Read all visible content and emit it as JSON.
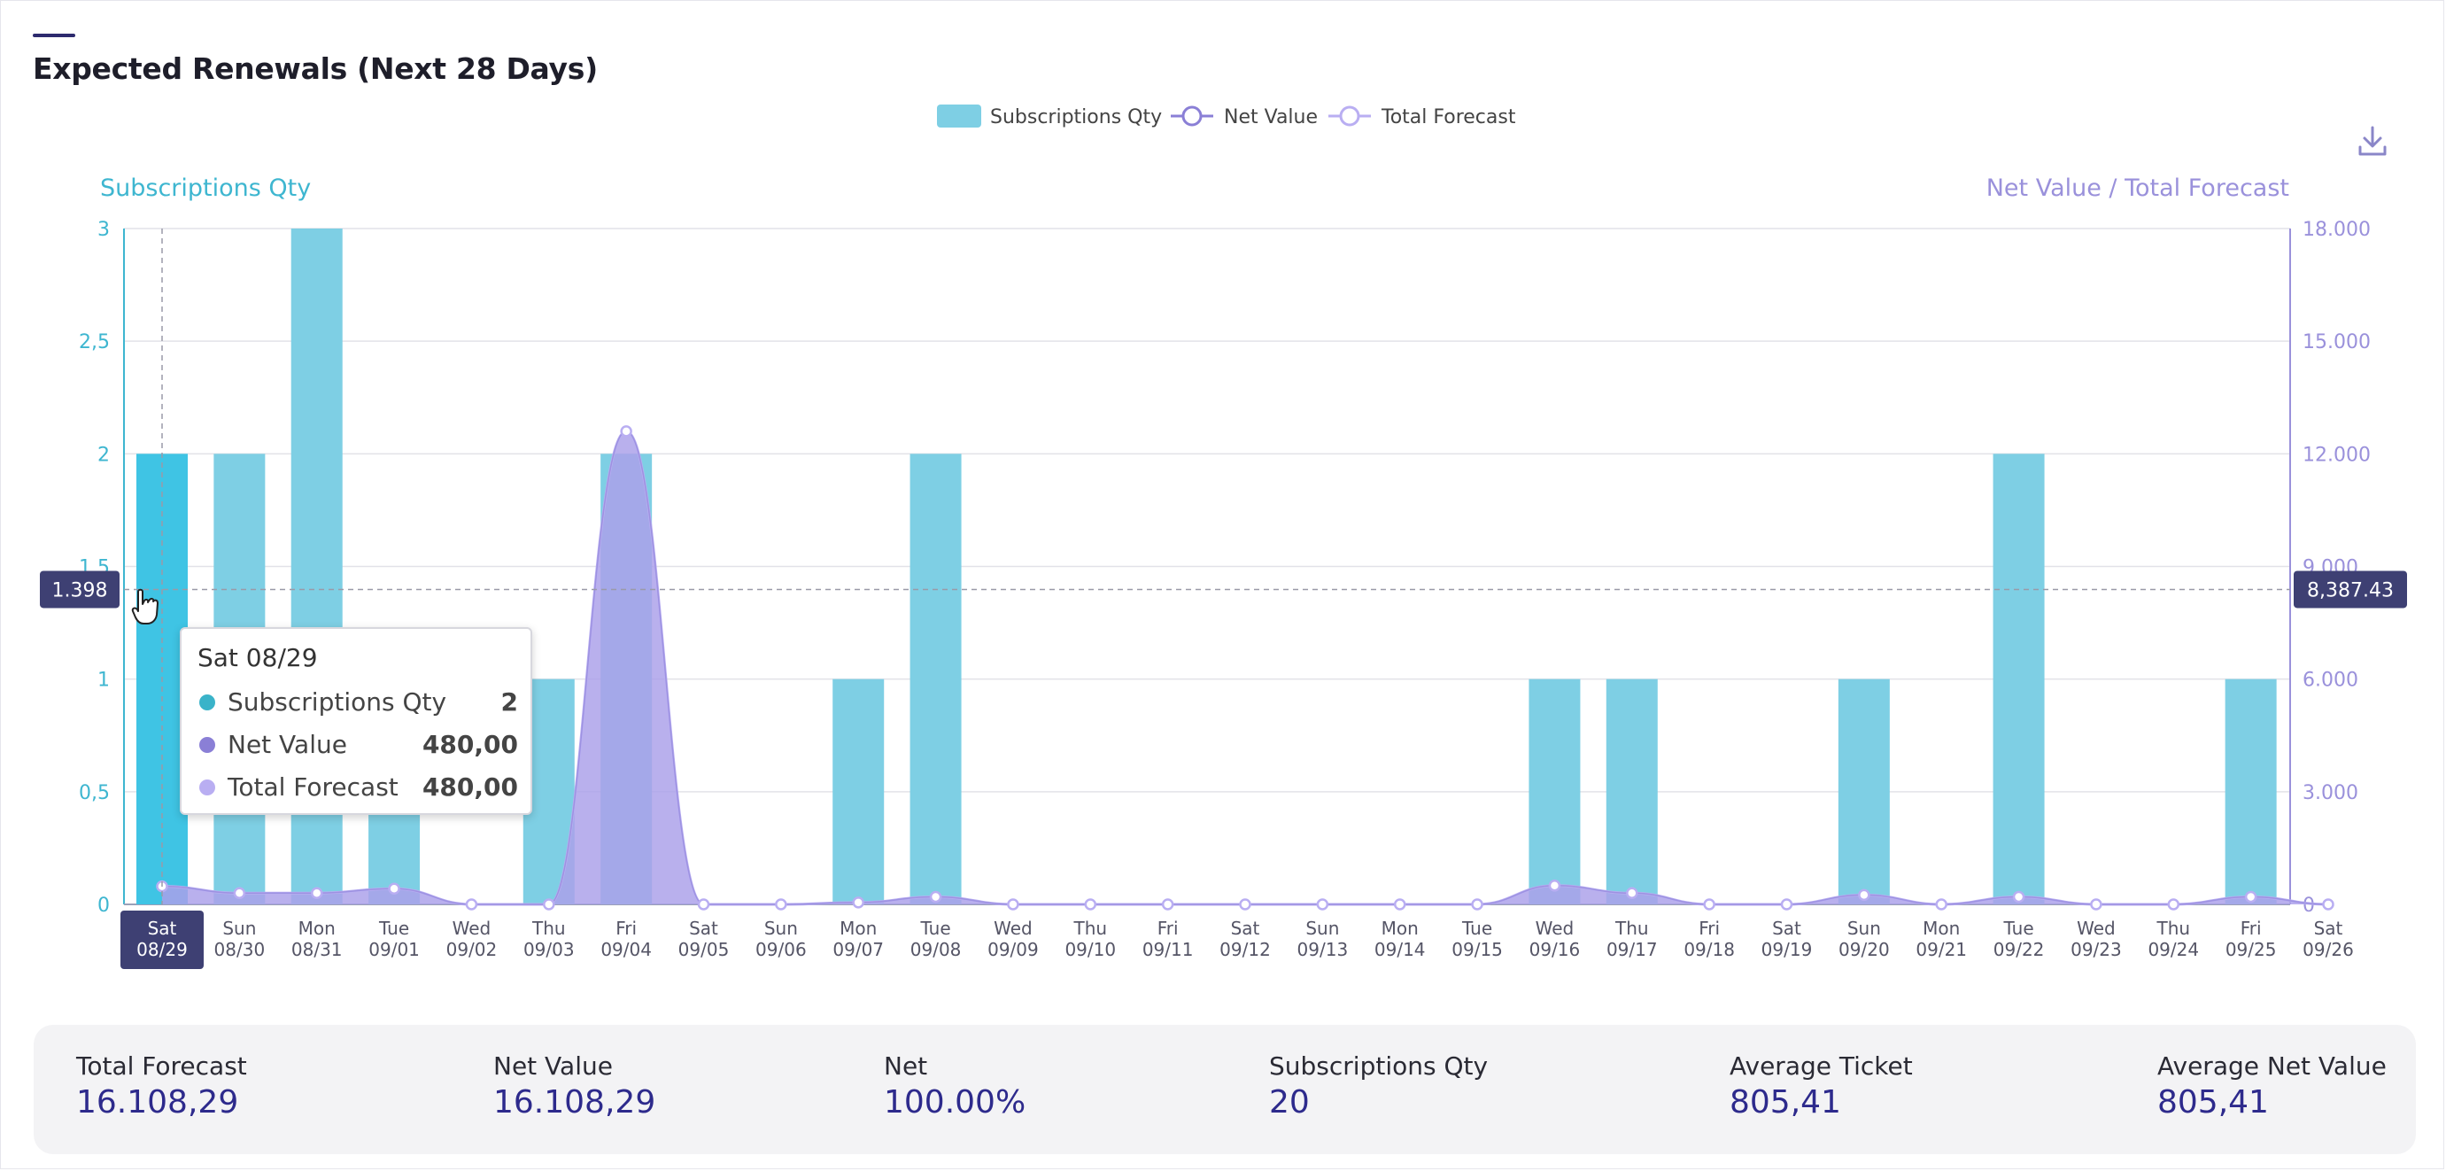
{
  "header": {
    "title": "Expected Renewals (Next 28 Days)"
  },
  "icons": {
    "download": "download-icon",
    "cursor": "hand-pointer-icon"
  },
  "colors": {
    "bars": "#7ecfe4",
    "bar_active": "#3fc4e4",
    "net_value": "#8a7fd6",
    "total_forecast": "#b9aef2",
    "axis_left": "#3eb6d0",
    "axis_right": "#9a91db",
    "crosshair_label_bg": "#3e4073",
    "stat_value": "#2d2a8c"
  },
  "chart_data": {
    "type": "bar",
    "legend": [
      "Subscriptions Qty",
      "Net Value",
      "Total Forecast"
    ],
    "legend_position": "top-center",
    "grid": true,
    "y_left_label": "Subscriptions Qty",
    "y_right_label": "Net Value / Total Forecast",
    "y_left_lim": [
      0,
      3
    ],
    "y_right_lim": [
      0,
      18000
    ],
    "y_left_ticks": [
      "0",
      "0,5",
      "1",
      "1,5",
      "2",
      "2,5",
      "3"
    ],
    "y_right_ticks": [
      "0",
      "3.000",
      "6.000",
      "9.000",
      "12.000",
      "15.000",
      "18.000"
    ],
    "categories": [
      {
        "day": "Sat",
        "date": "08/29"
      },
      {
        "day": "Sun",
        "date": "08/30"
      },
      {
        "day": "Mon",
        "date": "08/31"
      },
      {
        "day": "Tue",
        "date": "09/01"
      },
      {
        "day": "Wed",
        "date": "09/02"
      },
      {
        "day": "Thu",
        "date": "09/03"
      },
      {
        "day": "Fri",
        "date": "09/04"
      },
      {
        "day": "Sat",
        "date": "09/05"
      },
      {
        "day": "Sun",
        "date": "09/06"
      },
      {
        "day": "Mon",
        "date": "09/07"
      },
      {
        "day": "Tue",
        "date": "09/08"
      },
      {
        "day": "Wed",
        "date": "09/09"
      },
      {
        "day": "Thu",
        "date": "09/10"
      },
      {
        "day": "Fri",
        "date": "09/11"
      },
      {
        "day": "Sat",
        "date": "09/12"
      },
      {
        "day": "Sun",
        "date": "09/13"
      },
      {
        "day": "Mon",
        "date": "09/14"
      },
      {
        "day": "Tue",
        "date": "09/15"
      },
      {
        "day": "Wed",
        "date": "09/16"
      },
      {
        "day": "Thu",
        "date": "09/17"
      },
      {
        "day": "Fri",
        "date": "09/18"
      },
      {
        "day": "Sat",
        "date": "09/19"
      },
      {
        "day": "Sun",
        "date": "09/20"
      },
      {
        "day": "Mon",
        "date": "09/21"
      },
      {
        "day": "Tue",
        "date": "09/22"
      },
      {
        "day": "Wed",
        "date": "09/23"
      },
      {
        "day": "Thu",
        "date": "09/24"
      },
      {
        "day": "Fri",
        "date": "09/25"
      },
      {
        "day": "Sat",
        "date": "09/26"
      }
    ],
    "series": [
      {
        "name": "Subscriptions Qty",
        "axis": "left",
        "type": "bar",
        "values": [
          2,
          2,
          3,
          1,
          0,
          1,
          2,
          0,
          0,
          1,
          2,
          0,
          0,
          0,
          0,
          0,
          0,
          0,
          1,
          1,
          0,
          0,
          1,
          0,
          2,
          0,
          0,
          1,
          0
        ]
      },
      {
        "name": "Net Value",
        "axis": "right",
        "type": "area",
        "values": [
          480,
          300,
          300,
          420,
          0,
          0,
          12600,
          0,
          0,
          50,
          200,
          0,
          0,
          0,
          0,
          0,
          0,
          0,
          500,
          300,
          0,
          0,
          250,
          0,
          200,
          0,
          0,
          200,
          0
        ]
      },
      {
        "name": "Total Forecast",
        "axis": "right",
        "type": "area",
        "values": [
          480,
          300,
          300,
          420,
          0,
          0,
          12600,
          0,
          0,
          50,
          200,
          0,
          0,
          0,
          0,
          0,
          0,
          0,
          500,
          300,
          0,
          0,
          250,
          0,
          200,
          0,
          0,
          200,
          0
        ]
      }
    ],
    "active_index": 0,
    "crosshair": {
      "left_value": "1.398",
      "right_value": "8,387.43"
    }
  },
  "tooltip": {
    "title": "Sat 08/29",
    "rows": [
      {
        "label": "Subscriptions Qty",
        "value": "2"
      },
      {
        "label": "Net Value",
        "value": "480,00"
      },
      {
        "label": "Total Forecast",
        "value": "480,00"
      }
    ]
  },
  "stats": [
    {
      "label": "Total Forecast",
      "value": "16.108,29"
    },
    {
      "label": "Net Value",
      "value": "16.108,29"
    },
    {
      "label": "Net",
      "value": "100.00%"
    },
    {
      "label": "Subscriptions Qty",
      "value": "20"
    },
    {
      "label": "Average Ticket",
      "value": "805,41"
    },
    {
      "label": "Average Net Value",
      "value": "805,41"
    }
  ]
}
